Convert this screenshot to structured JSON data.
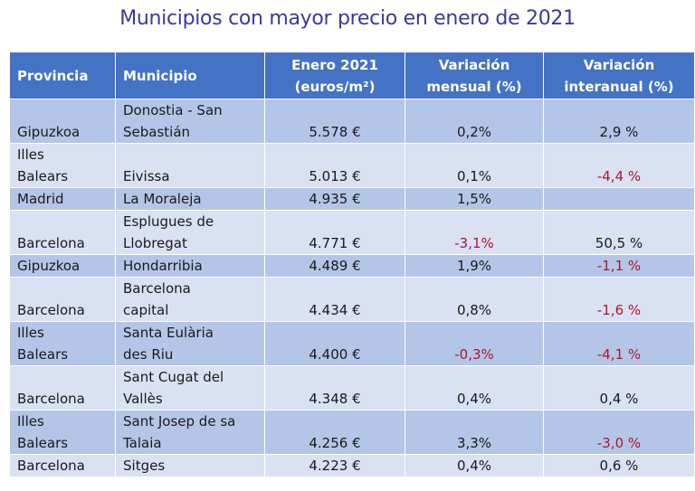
{
  "title": "Municipios con mayor precio en enero de 2021",
  "table": {
    "headers": {
      "provincia": "Provincia",
      "municipio": "Municipio",
      "enero_l1": "Enero 2021",
      "enero_l2": "(euros/m²)",
      "mensual_l1": "Variación",
      "mensual_l2": "mensual (%)",
      "interanual_l1": "Variación",
      "interanual_l2": "interanual (%)"
    },
    "rows": [
      {
        "provincia": [
          "",
          "Gipuzkoa"
        ],
        "municipio": [
          "Donostia - San",
          "Sebastián"
        ],
        "precio": "5.578 €",
        "mensual": "0,2%",
        "interanual": "2,9 %",
        "mensual_neg": false,
        "interanual_neg": false,
        "lines": 2
      },
      {
        "provincia": [
          "Illes",
          "Balears"
        ],
        "municipio": [
          "",
          "Eivissa"
        ],
        "precio": "5.013 €",
        "mensual": "0,1%",
        "interanual": "-4,4 %",
        "mensual_neg": false,
        "interanual_neg": true,
        "lines": 2
      },
      {
        "provincia": [
          "Madrid"
        ],
        "municipio": [
          "La Moraleja"
        ],
        "precio": "4.935 €",
        "mensual": "1,5%",
        "interanual": "",
        "mensual_neg": false,
        "interanual_neg": false,
        "lines": 1
      },
      {
        "provincia": [
          "",
          "Barcelona"
        ],
        "municipio": [
          "Esplugues de",
          "Llobregat"
        ],
        "precio": "4.771 €",
        "mensual": "-3,1%",
        "interanual": "50,5 %",
        "mensual_neg": true,
        "interanual_neg": false,
        "lines": 2
      },
      {
        "provincia": [
          "Gipuzkoa"
        ],
        "municipio": [
          "Hondarribia"
        ],
        "precio": "4.489 €",
        "mensual": "1,9%",
        "interanual": "-1,1 %",
        "mensual_neg": false,
        "interanual_neg": true,
        "lines": 1
      },
      {
        "provincia": [
          "",
          "Barcelona"
        ],
        "municipio": [
          "Barcelona",
          "capital"
        ],
        "precio": "4.434 €",
        "mensual": "0,8%",
        "interanual": "-1,6 %",
        "mensual_neg": false,
        "interanual_neg": true,
        "lines": 2
      },
      {
        "provincia": [
          "Illes",
          "Balears"
        ],
        "municipio": [
          "Santa Eulària",
          "des Riu"
        ],
        "precio": "4.400 €",
        "mensual": "-0,3%",
        "interanual": "-4,1 %",
        "mensual_neg": true,
        "interanual_neg": true,
        "lines": 2
      },
      {
        "provincia": [
          "",
          "Barcelona"
        ],
        "municipio": [
          "Sant Cugat del",
          "Vallès"
        ],
        "precio": "4.348 €",
        "mensual": "0,4%",
        "interanual": "0,4 %",
        "mensual_neg": false,
        "interanual_neg": false,
        "lines": 2
      },
      {
        "provincia": [
          "Illes",
          "Balears"
        ],
        "municipio": [
          "Sant Josep de sa",
          "Talaia"
        ],
        "precio": "4.256 €",
        "mensual": "3,3%",
        "interanual": "-3,0 %",
        "mensual_neg": false,
        "interanual_neg": true,
        "lines": 2
      },
      {
        "provincia": [
          "Barcelona"
        ],
        "municipio": [
          "Sitges"
        ],
        "precio": "4.223 €",
        "mensual": "0,4%",
        "interanual": "0,6 %",
        "mensual_neg": false,
        "interanual_neg": false,
        "lines": 1
      }
    ]
  }
}
